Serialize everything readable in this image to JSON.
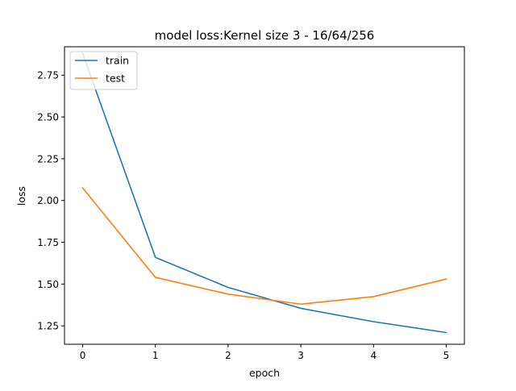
{
  "chart_data": {
    "type": "line",
    "title": "model loss:Kernel size 3 - 16/64/256",
    "xlabel": "epoch",
    "ylabel": "loss",
    "x": [
      0,
      1,
      2,
      3,
      4,
      5
    ],
    "x_ticks": [
      "0",
      "1",
      "2",
      "3",
      "4",
      "5"
    ],
    "y_ticks": [
      "1.25",
      "1.50",
      "1.75",
      "2.00",
      "2.25",
      "2.50",
      "2.75"
    ],
    "y_tick_values": [
      1.25,
      1.5,
      1.75,
      2.0,
      2.25,
      2.5,
      2.75
    ],
    "xlim": [
      -0.25,
      5.25
    ],
    "ylim": [
      1.14,
      2.92
    ],
    "grid": false,
    "legend_position": "top-left",
    "series": [
      {
        "name": "train",
        "color": "#1f77b4",
        "values": [
          2.88,
          1.66,
          1.48,
          1.355,
          1.275,
          1.21
        ]
      },
      {
        "name": "test",
        "color": "#ff7f0e",
        "values": [
          2.075,
          1.54,
          1.44,
          1.38,
          1.425,
          1.53
        ]
      }
    ]
  }
}
